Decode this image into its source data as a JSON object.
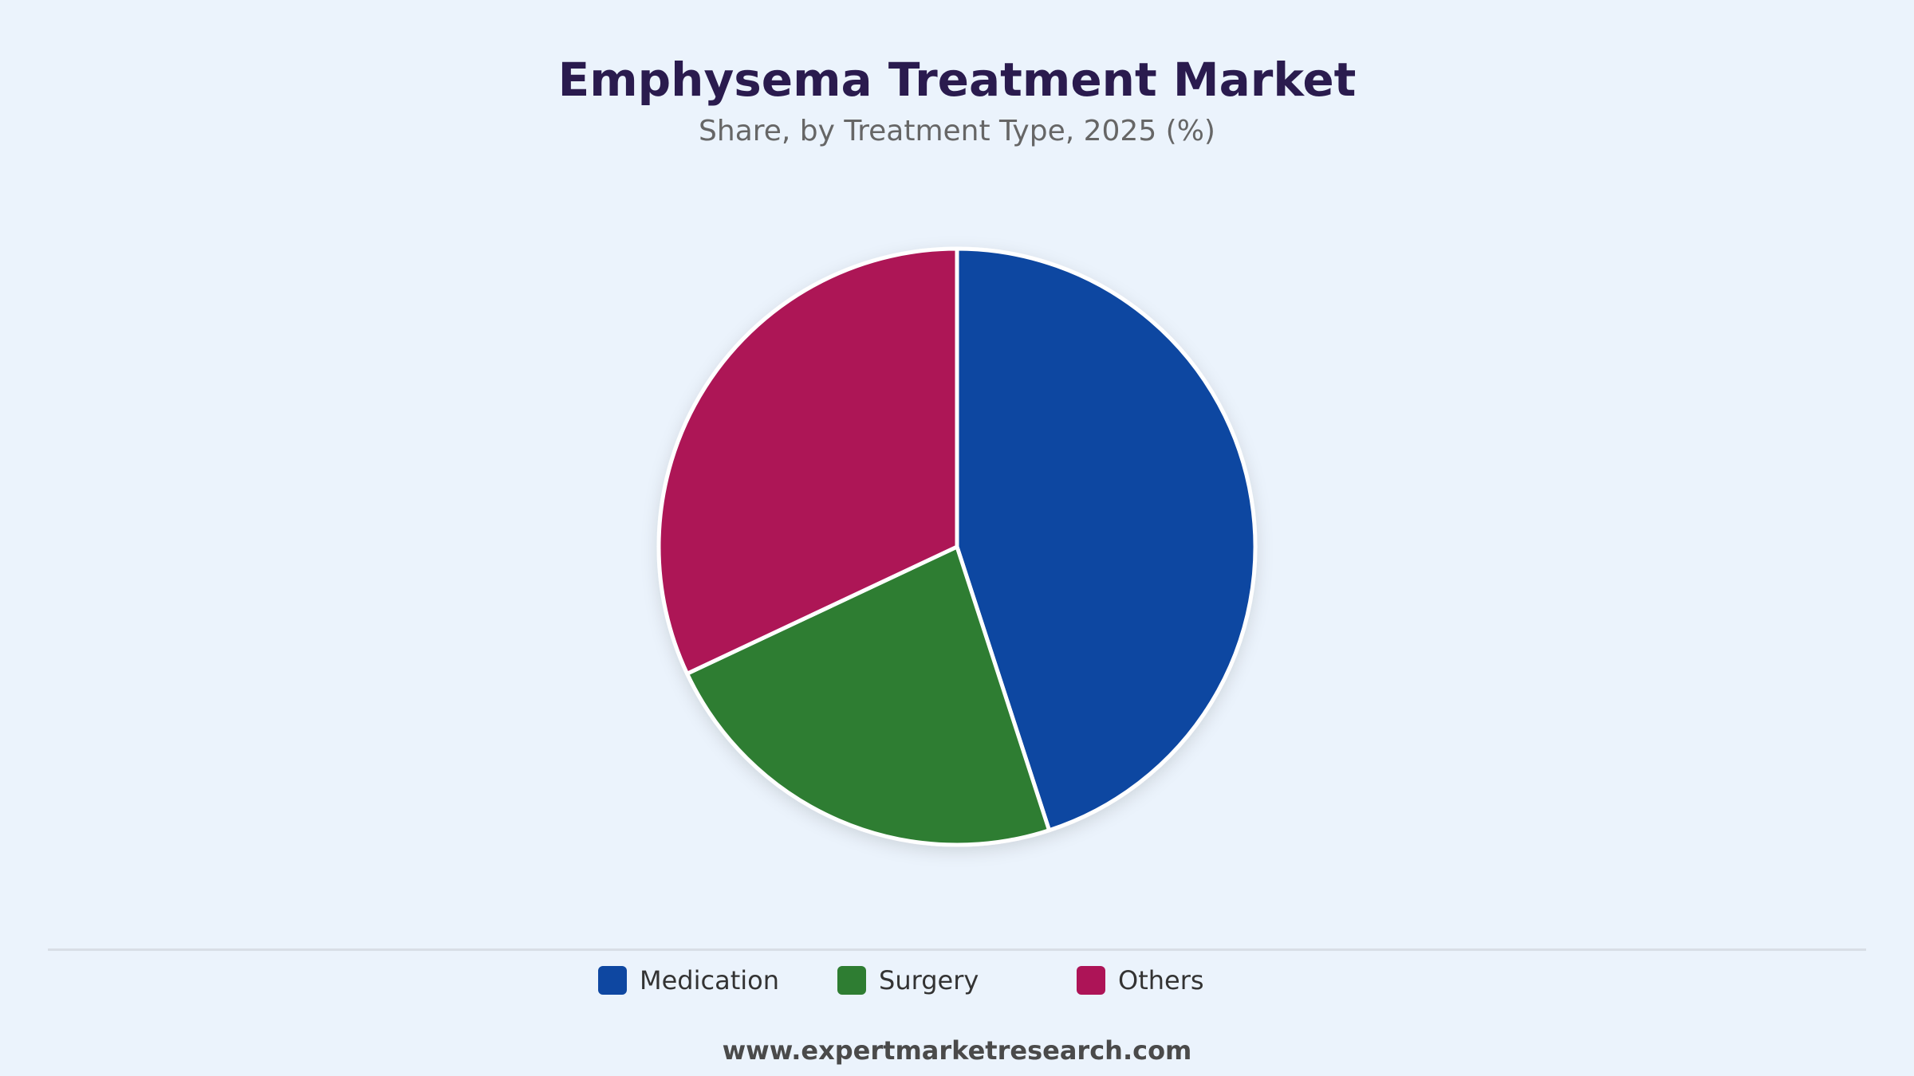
{
  "header": {
    "title": "Emphysema Treatment Market",
    "subtitle": "Share, by Treatment Type, 2025 (%)"
  },
  "chart_data": {
    "type": "pie",
    "title": "Emphysema Treatment Market",
    "subtitle": "Share, by Treatment Type, 2025 (%)",
    "categories": [
      "Medication",
      "Surgery",
      "Others"
    ],
    "values": [
      45,
      23,
      32
    ],
    "colors": [
      "#0E47A1",
      "#2E7D32",
      "#AD1457"
    ],
    "start_angle": "12 o'clock",
    "direction": "clockwise",
    "legend": "bottom-center"
  },
  "legend": {
    "items": [
      {
        "label": "Medication",
        "color": "#0E47A1"
      },
      {
        "label": "Surgery",
        "color": "#2E7D32"
      },
      {
        "label": "Others",
        "color": "#AD1457"
      }
    ]
  },
  "footer": {
    "source": "www.expertmarketresearch.com"
  }
}
